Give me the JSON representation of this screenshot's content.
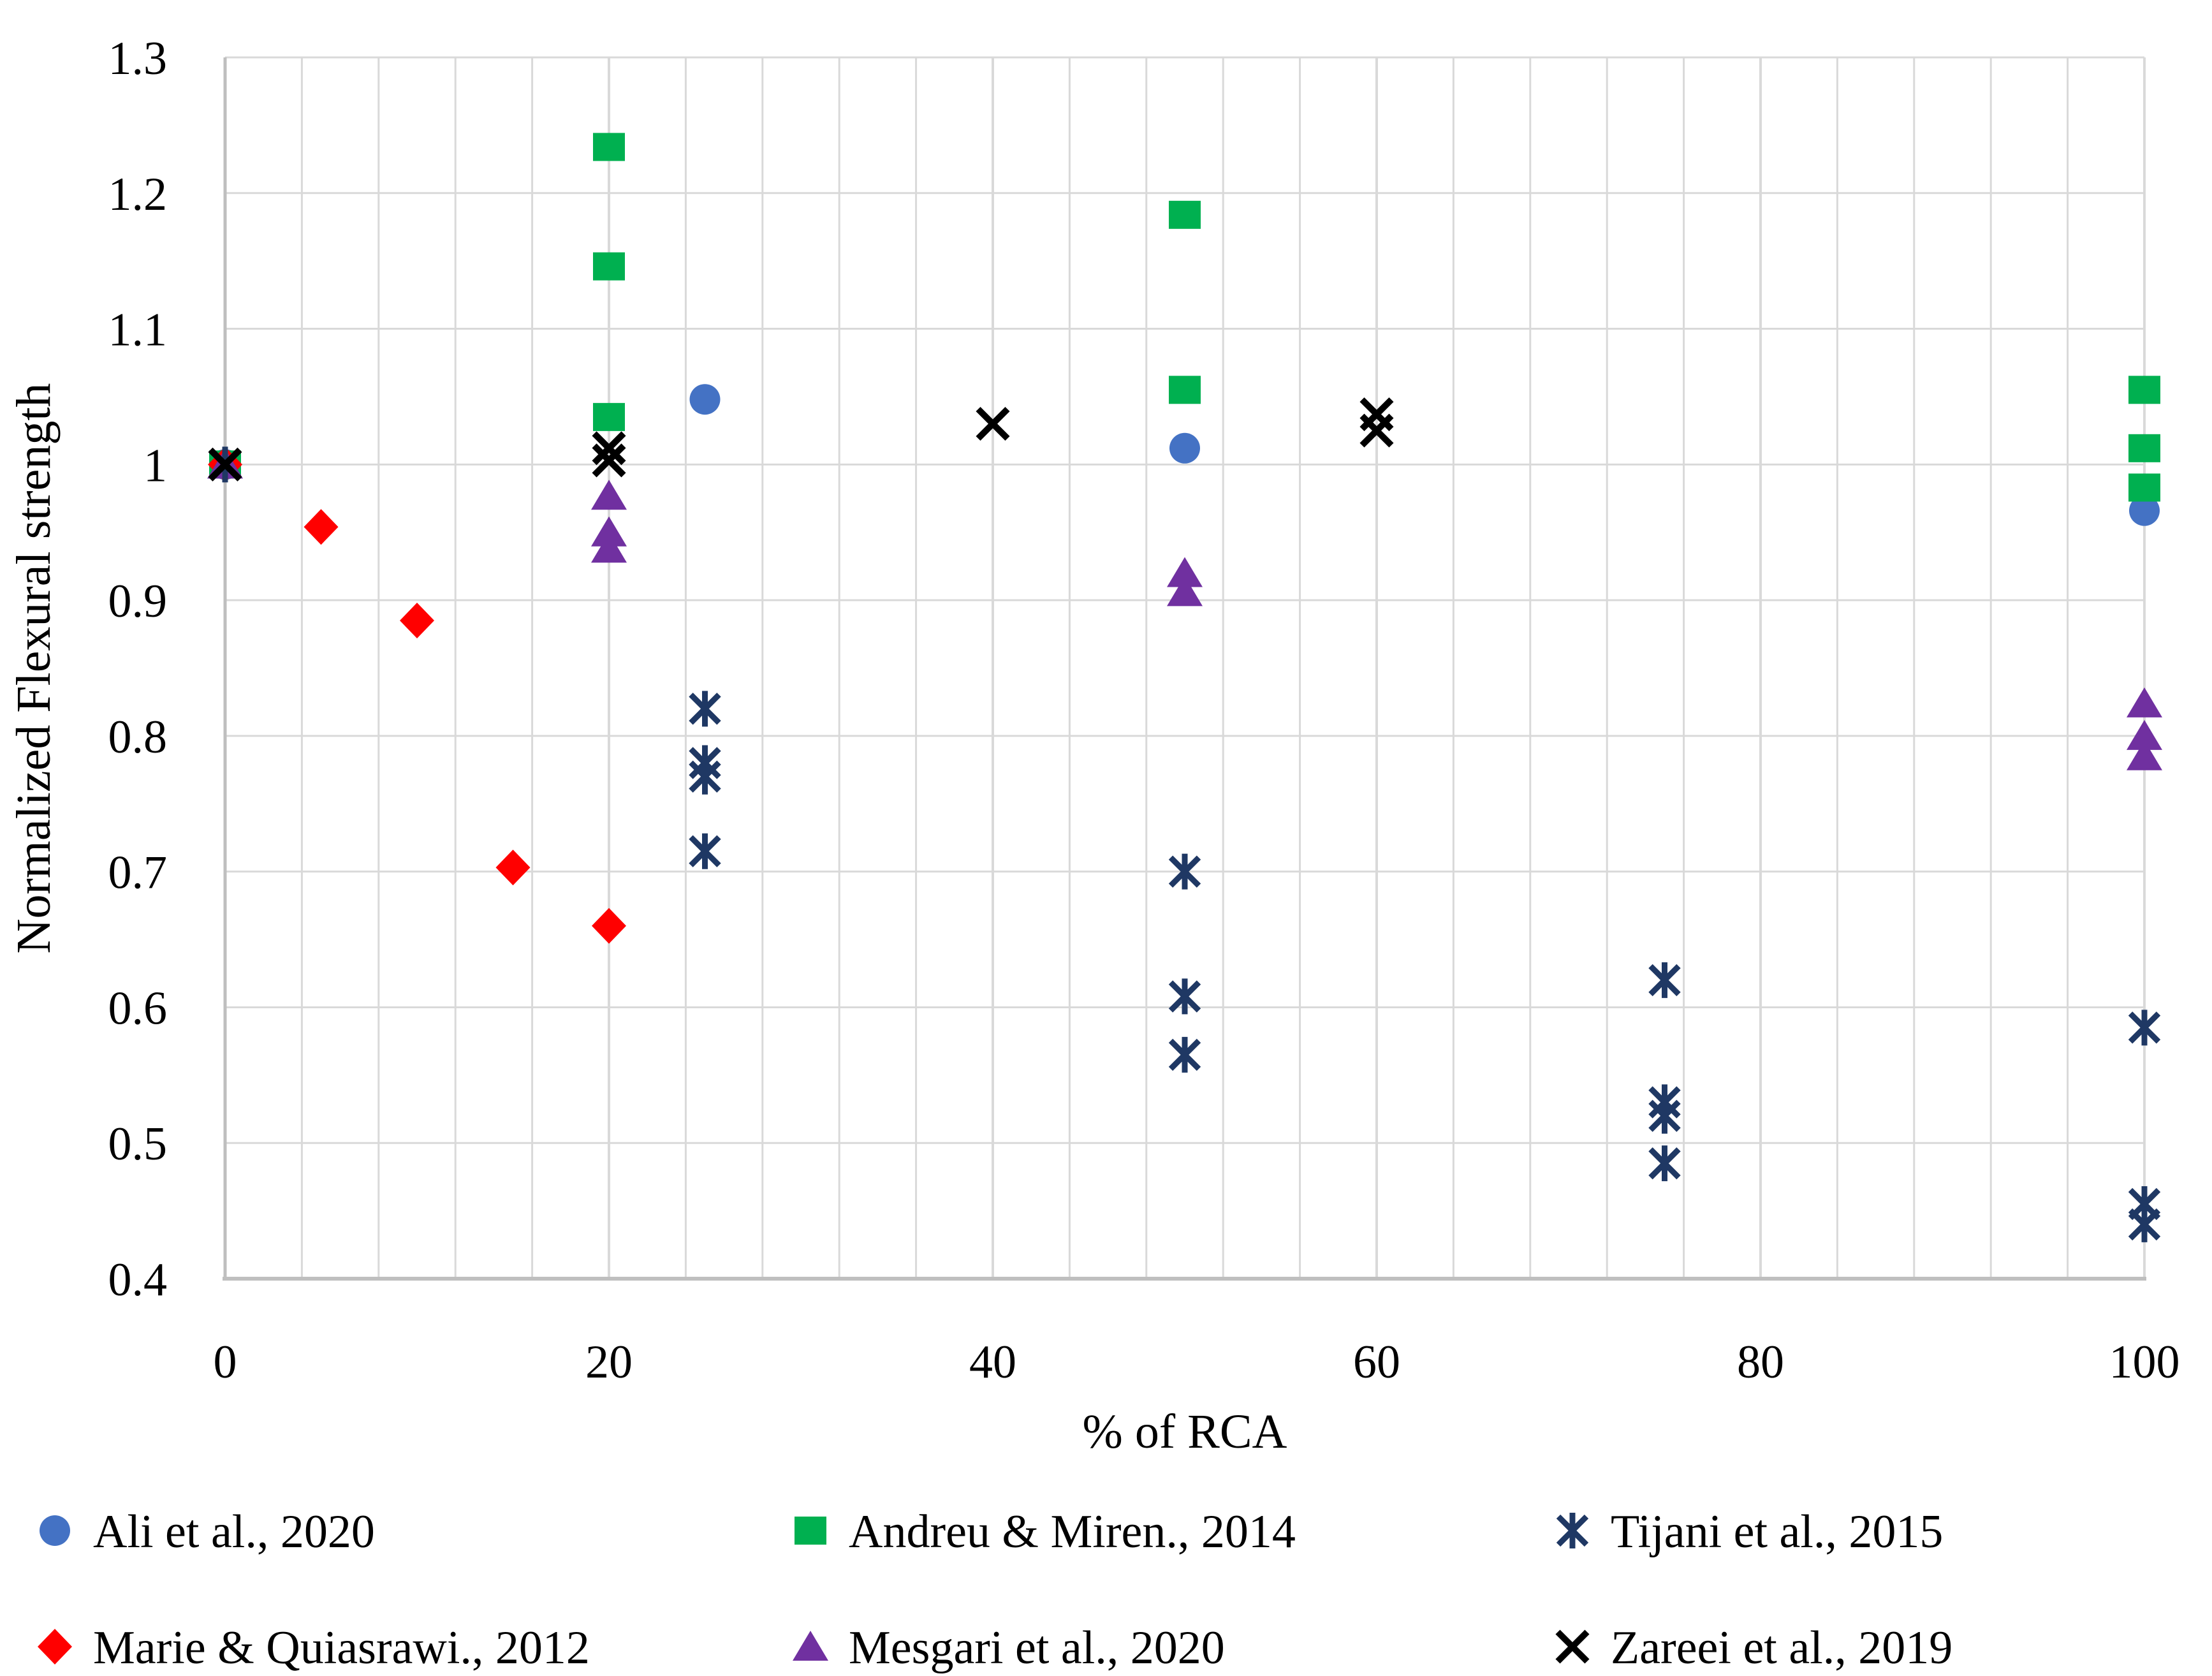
{
  "figure": {
    "background": "#ffffff",
    "grid_color": "#d9d9d9",
    "axis_color": "#bfbfbf"
  },
  "chart_data": {
    "type": "scatter",
    "title": "",
    "xlabel": "% of RCA",
    "ylabel": "Normalized Flexural strength",
    "xlim": [
      0,
      100
    ],
    "ylim": [
      0.4,
      1.3
    ],
    "x_tick_values": [
      0,
      20,
      40,
      60,
      80,
      100
    ],
    "x_tick_labels": [
      "0",
      "20",
      "40",
      "60",
      "80",
      "100"
    ],
    "y_tick_values": [
      1.3,
      1.2,
      1.1,
      1.0,
      0.9,
      0.8,
      0.7,
      0.6,
      0.5,
      0.4
    ],
    "y_tick_labels": [
      "1.3",
      "1.2",
      "1.1",
      "1",
      "0.9",
      "0.8",
      "0.7",
      "0.6",
      "0.5",
      "0.4"
    ],
    "grid": true,
    "x_minor_grid_step": 4,
    "legend_position": "bottom",
    "series": [
      {
        "name": "Ali et al., 2020",
        "marker": "circle",
        "color": "#4472c4",
        "points": [
          [
            0,
            1.0
          ],
          [
            25,
            1.048
          ],
          [
            50,
            1.012
          ],
          [
            100,
            0.966
          ]
        ]
      },
      {
        "name": "Andreu & Miren., 2014",
        "marker": "square",
        "color": "#00b050",
        "points": [
          [
            0,
            1.0
          ],
          [
            20,
            1.234
          ],
          [
            20,
            1.146
          ],
          [
            20,
            1.035
          ],
          [
            50,
            1.184
          ],
          [
            50,
            1.055
          ],
          [
            100,
            1.055
          ],
          [
            100,
            1.012
          ],
          [
            100,
            0.983
          ]
        ]
      },
      {
        "name": "Tijani et al., 2015",
        "marker": "asterisk",
        "color": "#1f3864",
        "points": [
          [
            0,
            1.0
          ],
          [
            25,
            0.82
          ],
          [
            25,
            0.78
          ],
          [
            25,
            0.77
          ],
          [
            25,
            0.715
          ],
          [
            50,
            0.7
          ],
          [
            50,
            0.608
          ],
          [
            50,
            0.565
          ],
          [
            75,
            0.62
          ],
          [
            75,
            0.53
          ],
          [
            75,
            0.52
          ],
          [
            75,
            0.485
          ],
          [
            100,
            0.585
          ],
          [
            100,
            0.455
          ],
          [
            100,
            0.44
          ]
        ]
      },
      {
        "name": "Marie & Quiasrawi., 2012",
        "marker": "diamond",
        "color": "#ff0000",
        "points": [
          [
            0,
            1.0
          ],
          [
            5,
            0.954
          ],
          [
            10,
            0.885
          ],
          [
            15,
            0.703
          ],
          [
            20,
            0.66
          ]
        ]
      },
      {
        "name": "Mesgari et al., 2020",
        "marker": "triangle",
        "color": "#7030a0",
        "points": [
          [
            0,
            1.0
          ],
          [
            20,
            0.977
          ],
          [
            20,
            0.95
          ],
          [
            20,
            0.938
          ],
          [
            50,
            0.92
          ],
          [
            50,
            0.906
          ],
          [
            100,
            0.824
          ],
          [
            100,
            0.8
          ],
          [
            100,
            0.785
          ]
        ]
      },
      {
        "name": "Zareei et al., 2019",
        "marker": "x",
        "color": "#000000",
        "points": [
          [
            0,
            1.0
          ],
          [
            20,
            1.012
          ],
          [
            20,
            1.003
          ],
          [
            40,
            1.03
          ],
          [
            60,
            1.037
          ],
          [
            60,
            1.025
          ]
        ]
      }
    ]
  }
}
